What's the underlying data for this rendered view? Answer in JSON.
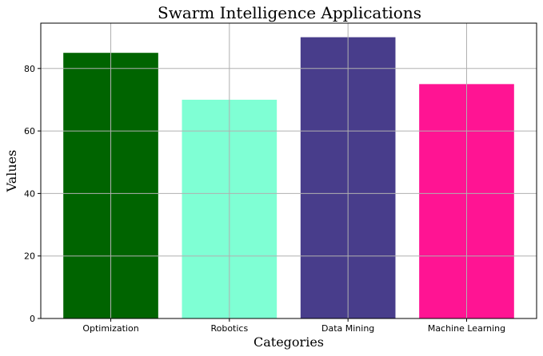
{
  "chart_data": {
    "type": "bar",
    "title": "Swarm Intelligence Applications",
    "xlabel": "Categories",
    "ylabel": "Values",
    "categories": [
      "Optimization",
      "Robotics",
      "Data Mining",
      "Machine Learning"
    ],
    "values": [
      85,
      70,
      90,
      75
    ],
    "colors": [
      "#006400",
      "#7fffd4",
      "#483d8b",
      "#ff1493"
    ],
    "ylim": [
      0,
      94.5
    ],
    "yticks": [
      0,
      20,
      40,
      60,
      80
    ],
    "grid": true
  }
}
